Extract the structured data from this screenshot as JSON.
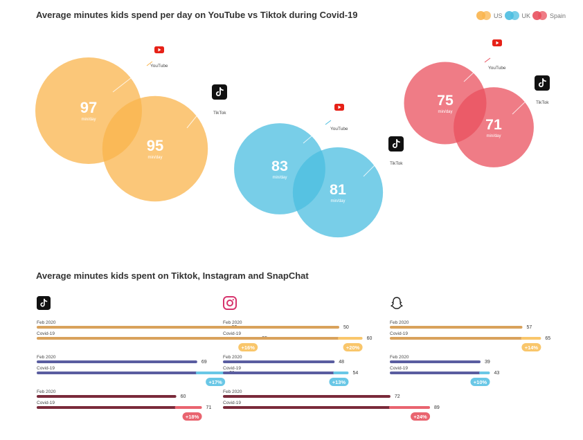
{
  "titles": {
    "venn": "Average minutes kids spend per day on YouTube vs Tiktok during Covid-19",
    "bars": "Average minutes kids spent on Tiktok, Instagram and SnapChat"
  },
  "legend": [
    {
      "label": "US",
      "color": "#F9B44C"
    },
    {
      "label": "UK",
      "color": "#4BBDE0"
    },
    {
      "label": "Spain",
      "color": "#E9505E"
    }
  ],
  "unit_label": "min/day",
  "chart_data": [
    {
      "type": "venn",
      "title": "Average minutes kids spend per day on YouTube vs Tiktok during Covid-19",
      "series": [
        {
          "name": "US",
          "color": "#F9B44C",
          "values": [
            {
              "platform": "YouTube",
              "value": 97
            },
            {
              "platform": "TikTok",
              "value": 95
            }
          ]
        },
        {
          "name": "UK",
          "color": "#4BBDE0",
          "values": [
            {
              "platform": "YouTube",
              "value": 83
            },
            {
              "platform": "TikTok",
              "value": 81
            }
          ]
        },
        {
          "name": "Spain",
          "color": "#E9505E",
          "values": [
            {
              "platform": "YouTube",
              "value": 75
            },
            {
              "platform": "TikTok",
              "value": 71
            }
          ]
        }
      ]
    },
    {
      "type": "bar",
      "title": "Average minutes kids spent on Tiktok, Instagram and SnapChat",
      "category_labels": [
        "Feb 2020",
        "Covid-19"
      ],
      "xlim": [
        0,
        100
      ],
      "panels": [
        {
          "icon": "tiktok-icon",
          "groups": [
            {
              "country": "US",
              "color": "#D9A25C",
              "accent": "#F9C66B",
              "feb": 82,
              "covid": 95,
              "change": "+16%"
            },
            {
              "country": "UK",
              "color": "#5A5DA0",
              "accent": "#69C7E6",
              "feb": 69,
              "covid": 81,
              "change": "+17%"
            },
            {
              "country": "Spain",
              "color": "#7A2A3A",
              "accent": "#E9646F",
              "feb": 60,
              "covid": 71,
              "change": "+18%"
            }
          ]
        },
        {
          "icon": "instagram-icon",
          "groups": [
            {
              "country": "US",
              "color": "#D9A25C",
              "accent": "#F9C66B",
              "feb": 50,
              "covid": 60,
              "change": "+20%"
            },
            {
              "country": "UK",
              "color": "#5A5DA0",
              "accent": "#69C7E6",
              "feb": 48,
              "covid": 54,
              "change": "+13%"
            },
            {
              "country": "Spain",
              "color": "#7A2A3A",
              "accent": "#E9646F",
              "feb": 72,
              "covid": 89,
              "change": "+24%"
            }
          ]
        },
        {
          "icon": "snapchat-icon",
          "groups": [
            {
              "country": "US",
              "color": "#D9A25C",
              "accent": "#F9C66B",
              "feb": 57,
              "covid": 65,
              "change": "+14%"
            },
            {
              "country": "UK",
              "color": "#5A5DA0",
              "accent": "#69C7E6",
              "feb": 39,
              "covid": 43,
              "change": "+10%"
            }
          ]
        }
      ]
    }
  ]
}
